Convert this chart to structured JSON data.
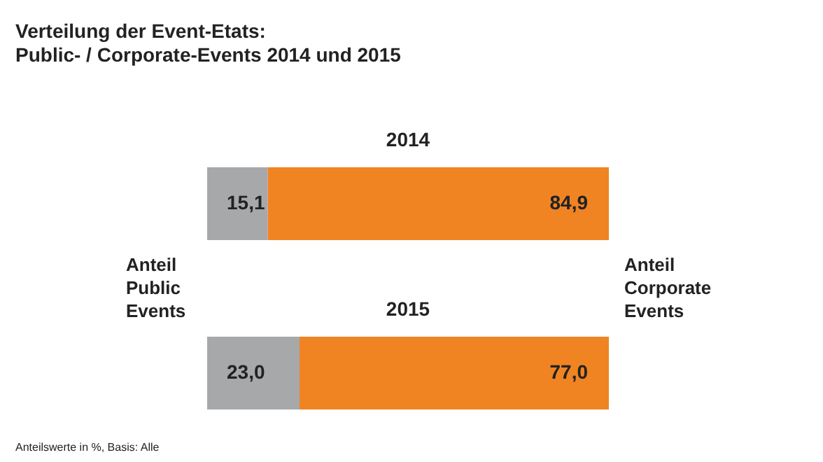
{
  "chart_data": {
    "type": "bar",
    "orientation": "horizontal",
    "stacked": true,
    "title": "Verteilung der Event-Etats:",
    "subtitle": "Public- / Corporate-Events 2014 und 2015",
    "categories": [
      "2014",
      "2015"
    ],
    "series": [
      {
        "name": "Anteil Public Events",
        "color": "#a7a8aa",
        "values": [
          15.1,
          23.0
        ],
        "value_labels": [
          "15,1",
          "23,0"
        ]
      },
      {
        "name": "Anteil Corporate Events",
        "color": "#f08423",
        "values": [
          84.9,
          77.0
        ],
        "value_labels": [
          "84,9",
          "77,0"
        ]
      }
    ],
    "xlim": [
      0,
      100
    ],
    "annotations": [
      "Anteilswerte in %, Basis: Alle"
    ]
  }
}
